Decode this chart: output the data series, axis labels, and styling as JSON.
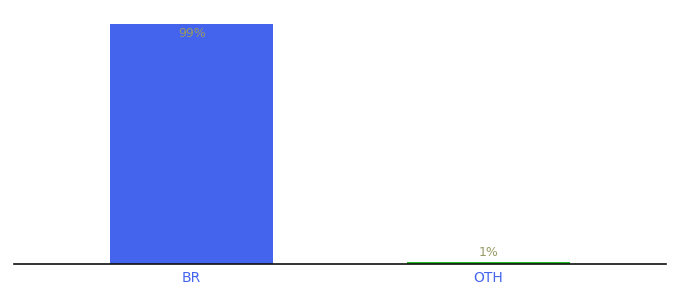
{
  "categories": [
    "BR",
    "OTH"
  ],
  "values": [
    99,
    1
  ],
  "bar_colors": [
    "#4464EE",
    "#22BB22"
  ],
  "label_texts": [
    "99%",
    "1%"
  ],
  "label_color": "#999966",
  "ylim": [
    0,
    105
  ],
  "background_color": "#ffffff",
  "tick_label_color": "#4464EE",
  "bar_width": 0.55,
  "figsize": [
    6.8,
    3.0
  ],
  "dpi": 100
}
